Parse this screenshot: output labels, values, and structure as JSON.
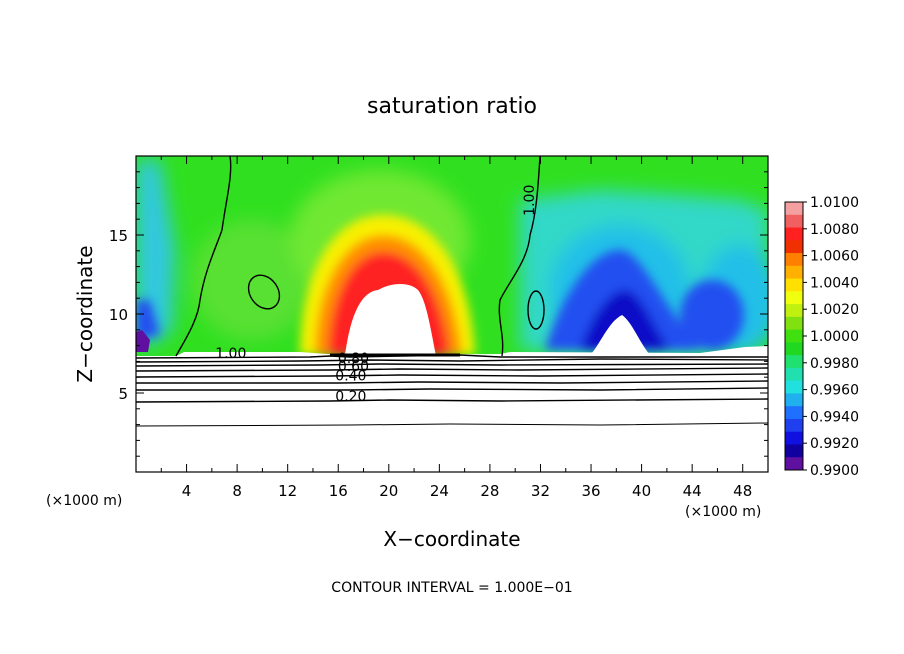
{
  "chart_data": {
    "type": "contour",
    "title": "saturation ratio",
    "xlabel": "X−coordinate",
    "ylabel": "Z−coordinate",
    "x_unit_left": "(×1000 m)",
    "x_unit_right": "(×1000 m)",
    "footer": "CONTOUR INTERVAL = 1.000E−01",
    "xlim": [
      0,
      50
    ],
    "ylim": [
      0,
      20
    ],
    "x_ticks": [
      4,
      8,
      12,
      16,
      20,
      24,
      28,
      32,
      36,
      40,
      44,
      48
    ],
    "y_ticks": [
      5,
      10,
      15
    ],
    "x_tick_labels": [
      "4",
      "8",
      "12",
      "16",
      "20",
      "24",
      "28",
      "32",
      "36",
      "40",
      "44",
      "48"
    ],
    "y_tick_labels": [
      "5",
      "10",
      "15"
    ],
    "colorbar": {
      "min": 0.99,
      "max": 1.01,
      "labels": [
        "1.0100",
        "1.0080",
        "1.0060",
        "1.0040",
        "1.0020",
        "1.0000",
        "0.9980",
        "0.9960",
        "0.9940",
        "0.9920",
        "0.9900"
      ],
      "colors": [
        "#f4a0a0",
        "#f06060",
        "#ff2020",
        "#f03000",
        "#ff8000",
        "#ffb000",
        "#ffe000",
        "#f0ff10",
        "#c0f010",
        "#80e010",
        "#40e010",
        "#20d820",
        "#20e070",
        "#20e0b0",
        "#20e0e0",
        "#20b0f0",
        "#2070ff",
        "#2040f0",
        "#1010e0",
        "#1000a0",
        "#6010a0"
      ]
    },
    "contour_labels": [
      {
        "text": "1.00",
        "x": 7.5,
        "z": 7.2
      },
      {
        "text": "1.00",
        "x": 31.5,
        "z": 17.2
      },
      {
        "text": "0.80",
        "x": 17.2,
        "z": 6.9
      },
      {
        "text": "0.60",
        "x": 17.2,
        "z": 6.4
      },
      {
        "text": "0.40",
        "x": 17.0,
        "z": 5.8
      },
      {
        "text": "0.20",
        "x": 17.0,
        "z": 4.5
      }
    ],
    "contour_levels_lower": [
      0.2,
      0.4,
      0.6,
      0.8,
      1.0
    ]
  }
}
